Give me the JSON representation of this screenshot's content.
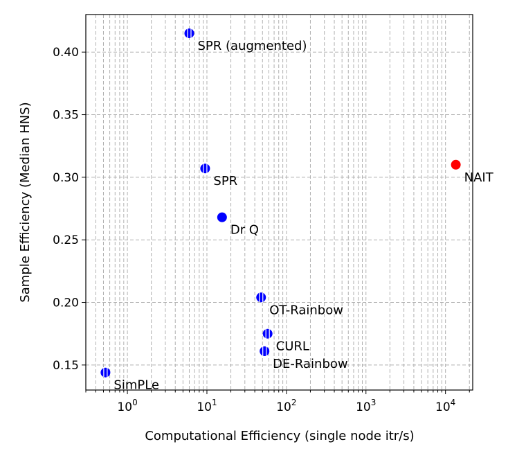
{
  "chart_data": {
    "type": "scatter",
    "xscale": "log",
    "xlim": [
      0.3,
      22000
    ],
    "ylim": [
      0.13,
      0.43
    ],
    "xlabel": "Computational Efficiency (single node itr/s)",
    "ylabel": "Sample Efficiency (Median HNS)",
    "grid": true,
    "xticks": [
      {
        "value": 1,
        "base": "10",
        "exp": "0"
      },
      {
        "value": 10,
        "base": "10",
        "exp": "1"
      },
      {
        "value": 100,
        "base": "10",
        "exp": "2"
      },
      {
        "value": 1000,
        "base": "10",
        "exp": "3"
      },
      {
        "value": 10000,
        "base": "10",
        "exp": "4"
      }
    ],
    "yticks": [
      {
        "value": 0.15,
        "label": "0.15"
      },
      {
        "value": 0.2,
        "label": "0.20"
      },
      {
        "value": 0.25,
        "label": "0.25"
      },
      {
        "value": 0.3,
        "label": "0.30"
      },
      {
        "value": 0.35,
        "label": "0.35"
      },
      {
        "value": 0.4,
        "label": "0.40"
      }
    ],
    "points": [
      {
        "name": "SPR (augmented)",
        "x": 6,
        "y": 0.415,
        "color": "#0000ff",
        "errorbar": true
      },
      {
        "name": "SPR",
        "x": 9.5,
        "y": 0.307,
        "color": "#0000ff",
        "errorbar": true
      },
      {
        "name": "Dr Q",
        "x": 15.5,
        "y": 0.268,
        "color": "#0000ff",
        "errorbar": false
      },
      {
        "name": "OT-Rainbow",
        "x": 48,
        "y": 0.204,
        "color": "#0000ff",
        "errorbar": true
      },
      {
        "name": "CURL",
        "x": 58,
        "y": 0.175,
        "color": "#0000ff",
        "errorbar": true
      },
      {
        "name": "DE-Rainbow",
        "x": 53,
        "y": 0.161,
        "color": "#0000ff",
        "errorbar": true
      },
      {
        "name": "SimPLe",
        "x": 0.53,
        "y": 0.144,
        "color": "#0000ff",
        "errorbar": true
      },
      {
        "name": "NAIT",
        "x": 13500,
        "y": 0.31,
        "color": "#ff0000",
        "errorbar": false
      }
    ]
  }
}
